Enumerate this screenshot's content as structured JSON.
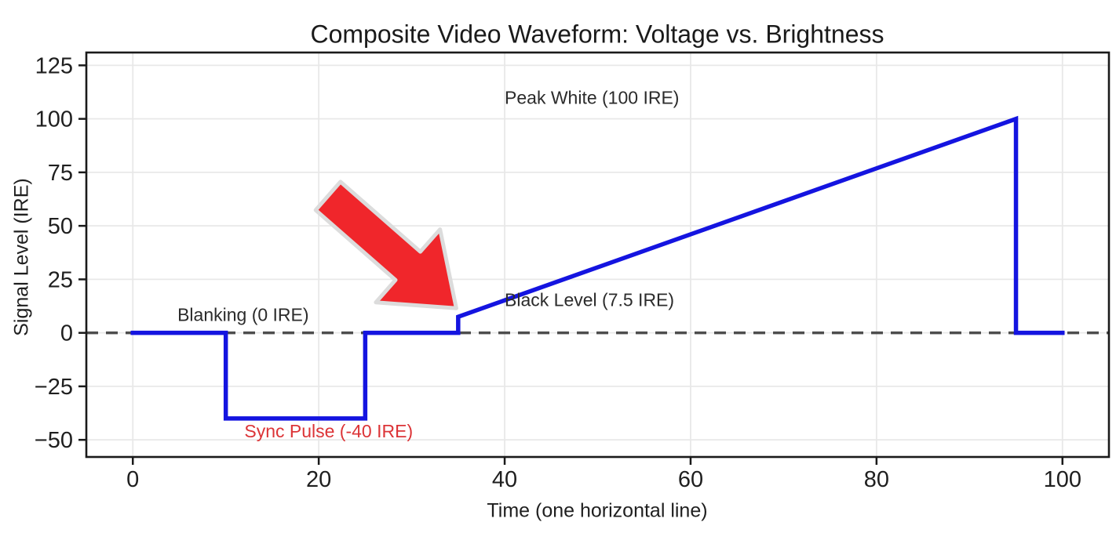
{
  "chart_data": {
    "type": "line",
    "title": "Composite Video Waveform: Voltage vs. Brightness",
    "xlabel": "Time (one horizontal line)",
    "ylabel": "Signal Level (IRE)",
    "xlim": [
      -5,
      105
    ],
    "ylim": [
      -58,
      131
    ],
    "xticks": [
      0,
      20,
      40,
      60,
      80,
      100
    ],
    "yticks": [
      125,
      100,
      75,
      50,
      25,
      0,
      -25,
      -50
    ],
    "grid": true,
    "legend": false,
    "series": [
      {
        "name": "composite-video-signal",
        "color": "#1414e0",
        "line_width": 5.5,
        "points": [
          [
            0,
            0
          ],
          [
            10,
            0
          ],
          [
            10,
            -40
          ],
          [
            25,
            -40
          ],
          [
            25,
            0
          ],
          [
            35,
            0
          ],
          [
            35,
            7.5
          ],
          [
            95,
            100
          ],
          [
            95,
            0
          ],
          [
            100,
            0
          ]
        ]
      }
    ],
    "reference_lines": [
      {
        "name": "blanking-zero-line",
        "y": 0,
        "style": "dashed",
        "color": "#4d4d4d",
        "line_width": 3.5,
        "dash": "15 10"
      }
    ],
    "annotations": [
      {
        "name": "peak-white-label",
        "text": "Peak White (100 IRE)",
        "x": 40,
        "y": 110,
        "color": "#2b2b2b"
      },
      {
        "name": "blanking-label",
        "text": "Blanking (0 IRE)",
        "x": 4.8,
        "y": 8.4,
        "color": "#2b2b2b"
      },
      {
        "name": "black-level-label",
        "text": "Black Level (7.5 IRE)",
        "x": 40,
        "y": 15.5,
        "color": "#2b2b2b"
      },
      {
        "name": "sync-pulse-label",
        "text": "Sync Pulse (-40 IRE)",
        "x": 12,
        "y": -46,
        "color": "#dc3437"
      }
    ],
    "arrow_annotation": {
      "name": "red-highlight-arrow",
      "tail": [
        21,
        64
      ],
      "tip": [
        34.8,
        11.5
      ],
      "fill": "#f0262b",
      "outline": "#dcdcdc"
    },
    "style": {
      "background": "#ffffff",
      "axis_color": "#1a1a1a",
      "grid_color": "#e8e8e8",
      "tick_label_color": "#1f1f1f",
      "title_color": "#1a1a1a",
      "axis_label_color": "#1f1f1f"
    }
  }
}
